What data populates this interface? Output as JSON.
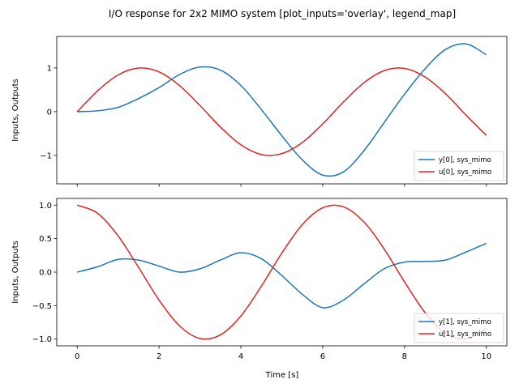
{
  "chart_data": {
    "title": "I/O response for 2x2 MIMO system [plot_inputs='overlay', legend_map]",
    "xlabel": "Time [s]",
    "colors": {
      "output": "#1f77b4",
      "input": "#d62728"
    },
    "x": [
      0,
      0.5,
      1,
      1.5,
      2,
      2.5,
      3,
      3.5,
      4,
      4.5,
      5,
      5.5,
      6,
      6.5,
      7,
      7.5,
      8,
      8.5,
      9,
      9.5,
      10
    ],
    "xlim": [
      -0.5,
      10.5
    ],
    "xticks": [
      0,
      2,
      4,
      6,
      8,
      10
    ],
    "xtick_labels": [
      "0",
      "2",
      "4",
      "6",
      "8",
      "10"
    ],
    "subplots": [
      {
        "type": "line",
        "ylabel": "Inputs, Outputs",
        "ylim": [
          -1.65,
          1.72
        ],
        "yticks": [
          -1,
          0,
          1
        ],
        "ytick_labels": [
          "−1",
          "0",
          "1"
        ],
        "legend_position": "lower-right",
        "series": [
          {
            "name": "y[0], sys_mimo",
            "role": "output",
            "values": [
              0,
              0.02,
              0.1,
              0.3,
              0.55,
              0.85,
              1.02,
              0.95,
              0.6,
              0.05,
              -0.55,
              -1.1,
              -1.45,
              -1.38,
              -0.9,
              -0.25,
              0.4,
              0.98,
              1.42,
              1.55,
              1.3
            ]
          },
          {
            "name": "u[0], sys_mimo",
            "role": "input",
            "values": [
              0,
              0.479,
              0.841,
              0.997,
              0.909,
              0.598,
              0.141,
              -0.351,
              -0.757,
              -0.978,
              -0.959,
              -0.706,
              -0.279,
              0.215,
              0.657,
              0.938,
              0.989,
              0.794,
              0.412,
              -0.075,
              -0.544
            ]
          }
        ]
      },
      {
        "type": "line",
        "ylabel": "Inputs, Outputs",
        "ylim": [
          -1.1,
          1.1
        ],
        "yticks": [
          -1.0,
          -0.5,
          0.0,
          0.5,
          1.0
        ],
        "ytick_labels": [
          "−1.0",
          "−0.5",
          "0.0",
          "0.5",
          "1.0"
        ],
        "legend_position": "lower-right",
        "series": [
          {
            "name": "y[1], sys_mimo",
            "role": "output",
            "values": [
              0,
              0.08,
              0.19,
              0.18,
              0.09,
              0.0,
              0.05,
              0.18,
              0.29,
              0.2,
              -0.05,
              -0.33,
              -0.53,
              -0.42,
              -0.18,
              0.05,
              0.15,
              0.16,
              0.18,
              0.3,
              0.43
            ]
          },
          {
            "name": "u[1], sys_mimo",
            "role": "input",
            "values": [
              1,
              0.878,
              0.54,
              0.071,
              -0.416,
              -0.801,
              -0.99,
              -0.936,
              -0.654,
              -0.211,
              0.284,
              0.709,
              0.96,
              0.977,
              0.754,
              0.347,
              -0.146,
              -0.602,
              -0.911,
              -0.997,
              -0.839
            ]
          }
        ]
      }
    ]
  }
}
